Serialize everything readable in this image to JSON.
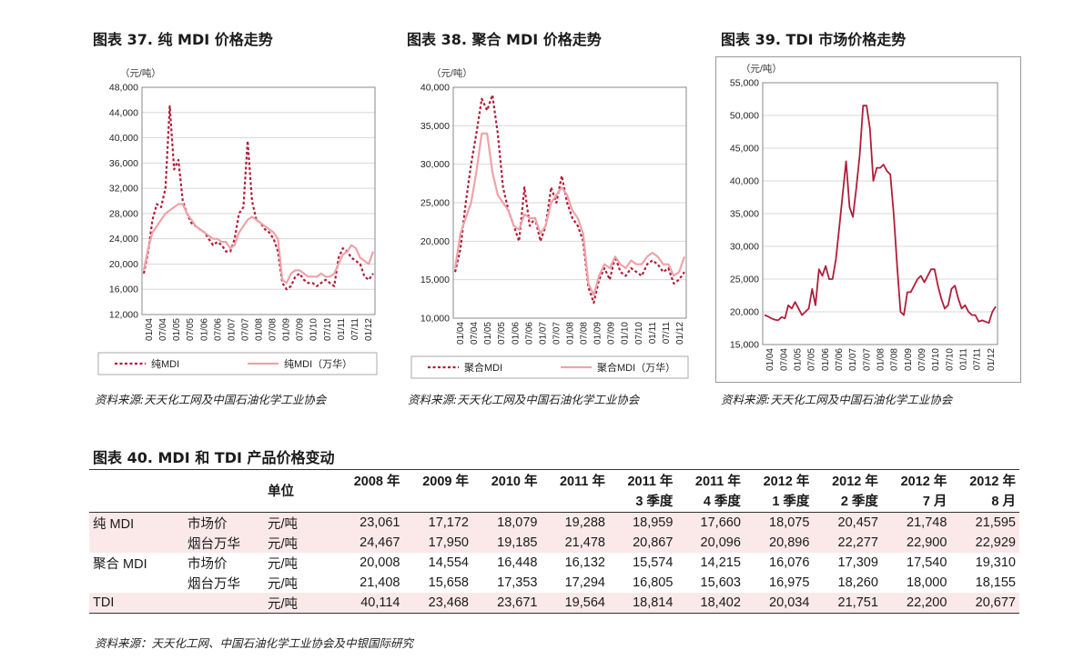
{
  "colors": {
    "series_dark": "#b01e3a",
    "series_light": "#eda3a9",
    "shade": "#fbe9ea"
  },
  "charts": [
    {
      "title": "图表 37. 纯 MDI 价格走势",
      "unit": "（元/吨）",
      "source": "资料来源:天天化工网及中国石油化学工业协会",
      "legend": [
        "纯MDI",
        "纯MDI（万华）"
      ]
    },
    {
      "title": "图表 38. 聚合 MDI 价格走势",
      "unit": "（元/吨）",
      "source": "资料来源:天天化工网及中国石油化学工业协会",
      "legend": [
        "聚合MDI",
        "聚合MDI（万华）"
      ]
    },
    {
      "title": "图表 39. TDI 市场价格走势",
      "unit": "（元/吨）",
      "source": "资料来源:天天化工网及中国石油化学工业协会",
      "legend": []
    }
  ],
  "chart_data": [
    {
      "type": "line",
      "title": "图表 37. 纯 MDI 价格走势",
      "ylabel": "（元/吨）",
      "ylim": [
        12000,
        48000
      ],
      "yticks": [
        "12,000",
        "16,000",
        "20,000",
        "24,000",
        "28,000",
        "32,000",
        "36,000",
        "40,000",
        "44,000",
        "48,000"
      ],
      "x_ticks": [
        "01/04",
        "07/04",
        "01/05",
        "07/05",
        "01/06",
        "07/06",
        "01/07",
        "07/07",
        "01/08",
        "07/08",
        "01/09",
        "07/09",
        "01/10",
        "07/10",
        "01/11",
        "07/11",
        "01/12"
      ],
      "legend_position": "bottom",
      "grid": true,
      "series": [
        {
          "name": "纯MDI",
          "style": "dotted",
          "color": "#b01e3a",
          "values": [
            18500,
            22000,
            27000,
            29500,
            29000,
            32000,
            45000,
            35000,
            36500,
            30000,
            28000,
            26500,
            26000,
            25500,
            25000,
            24000,
            23000,
            23500,
            23000,
            22000,
            22000,
            24000,
            28000,
            29000,
            39500,
            30000,
            27000,
            26500,
            25500,
            25000,
            24000,
            22000,
            17000,
            16000,
            16500,
            18000,
            18500,
            17500,
            17000,
            17000,
            16500,
            17000,
            17500,
            17000,
            16500,
            21000,
            22500,
            22000,
            21000,
            20500,
            20000,
            18000,
            17500,
            18500
          ]
        },
        {
          "name": "纯MDI（万华）",
          "style": "solid",
          "color": "#eda3a9",
          "values": [
            19000,
            22500,
            25000,
            26000,
            27000,
            28000,
            28500,
            29000,
            29500,
            29500,
            28000,
            27000,
            26000,
            25500,
            25000,
            24500,
            24000,
            24000,
            23500,
            23500,
            22500,
            23000,
            25000,
            26000,
            27000,
            27500,
            27000,
            26500,
            26000,
            25500,
            25000,
            24000,
            17500,
            17000,
            18500,
            19000,
            19000,
            18500,
            18000,
            18000,
            18000,
            18500,
            18000,
            18000,
            18500,
            20000,
            21500,
            22000,
            23000,
            22500,
            21000,
            20500,
            20000,
            22000
          ]
        }
      ]
    },
    {
      "type": "line",
      "title": "图表 38. 聚合 MDI 价格走势",
      "ylabel": "（元/吨）",
      "ylim": [
        10000,
        40000
      ],
      "yticks": [
        "10,000",
        "15,000",
        "20,000",
        "25,000",
        "30,000",
        "35,000",
        "40,000"
      ],
      "x_ticks": [
        "01/04",
        "07/04",
        "01/05",
        "07/05",
        "01/06",
        "07/06",
        "01/07",
        "07/07",
        "01/08",
        "07/08",
        "01/09",
        "07/09",
        "01/10",
        "07/10",
        "01/11",
        "07/11",
        "01/12"
      ],
      "legend_position": "bottom",
      "grid": true,
      "series": [
        {
          "name": "聚合MDI",
          "style": "dotted",
          "color": "#b01e3a",
          "values": [
            16000,
            19000,
            25000,
            30000,
            34000,
            38500,
            37000,
            39000,
            34000,
            27000,
            24000,
            22000,
            20000,
            27000,
            22000,
            23000,
            20000,
            22000,
            27000,
            25000,
            28500,
            25000,
            23000,
            22000,
            20000,
            14000,
            12000,
            15000,
            16500,
            15000,
            18000,
            16000,
            15500,
            16500,
            16000,
            15500,
            17000,
            17500,
            17000,
            16000,
            16500,
            14500,
            15000,
            16000
          ]
        },
        {
          "name": "聚合MDI（万华）",
          "style": "solid",
          "color": "#eda3a9",
          "values": [
            16500,
            21000,
            23000,
            25000,
            29000,
            34000,
            34000,
            29000,
            26000,
            25000,
            24000,
            22000,
            21500,
            23500,
            23000,
            23000,
            21000,
            22000,
            25000,
            26000,
            27000,
            26000,
            24000,
            23000,
            21000,
            14500,
            13000,
            15500,
            17000,
            16500,
            18000,
            17000,
            16500,
            17500,
            17000,
            17000,
            18000,
            18500,
            18000,
            17000,
            17000,
            15500,
            16000,
            18000
          ]
        }
      ]
    },
    {
      "type": "line",
      "title": "图表 39. TDI 市场价格走势",
      "ylabel": "（元/吨）",
      "ylim": [
        15000,
        55000
      ],
      "yticks": [
        "15,000",
        "20,000",
        "25,000",
        "30,000",
        "35,000",
        "40,000",
        "45,000",
        "50,000",
        "55,000"
      ],
      "x_ticks": [
        "01/04",
        "07/04",
        "01/05",
        "07/05",
        "01/06",
        "07/06",
        "01/07",
        "07/07",
        "01/08",
        "07/08",
        "01/09",
        "07/09",
        "01/10",
        "07/10",
        "01/11",
        "07/11",
        "01/12"
      ],
      "legend_position": "none",
      "grid": true,
      "series": [
        {
          "name": "",
          "style": "solid",
          "color": "#b01e3a",
          "values": [
            19500,
            19300,
            19000,
            18800,
            18700,
            19200,
            19000,
            21000,
            20500,
            21500,
            20500,
            19500,
            20000,
            20500,
            23500,
            21000,
            26500,
            25500,
            27000,
            25000,
            25000,
            28000,
            33000,
            38000,
            43000,
            36000,
            34500,
            39000,
            44000,
            51500,
            51500,
            48000,
            40000,
            42000,
            42000,
            42500,
            41500,
            41000,
            35000,
            27000,
            20000,
            19500,
            23000,
            23000,
            24000,
            25000,
            25500,
            24500,
            25500,
            26500,
            26500,
            24000,
            22000,
            20500,
            21000,
            23500,
            24000,
            22000,
            20500,
            21000,
            20000,
            19500,
            19500,
            18500,
            18700,
            18500,
            18300,
            20000,
            20800
          ]
        }
      ]
    }
  ],
  "table": {
    "title": "图表 40. MDI 和 TDI 产品价格变动",
    "unit_header": "单位",
    "col_line1": [
      "2008 年",
      "2009 年",
      "2010 年",
      "2011 年",
      "2011 年",
      "2011 年",
      "2012 年",
      "2012 年",
      "2012 年",
      "2012 年"
    ],
    "col_line2": [
      "",
      "",
      "",
      "",
      "3 季度",
      "4 季度",
      "1 季度",
      "2 季度",
      "7 月",
      "8 月"
    ],
    "rows": [
      {
        "product": "纯 MDI",
        "sub": "市场价",
        "unit": "元/吨",
        "values": [
          "23,061",
          "17,172",
          "18,079",
          "19,288",
          "18,959",
          "17,660",
          "18,075",
          "20,457",
          "21,748",
          "21,595"
        ],
        "shaded": true
      },
      {
        "product": "",
        "sub": "烟台万华",
        "unit": "元/吨",
        "values": [
          "24,467",
          "17,950",
          "19,185",
          "21,478",
          "20,867",
          "20,096",
          "20,896",
          "22,277",
          "22,900",
          "22,929"
        ],
        "shaded": true
      },
      {
        "product": "聚合 MDI",
        "sub": "市场价",
        "unit": "元/吨",
        "values": [
          "20,008",
          "14,554",
          "16,448",
          "16,132",
          "15,574",
          "14,215",
          "16,076",
          "17,309",
          "17,540",
          "19,310"
        ],
        "shaded": false
      },
      {
        "product": "",
        "sub": "烟台万华",
        "unit": "元/吨",
        "values": [
          "21,408",
          "15,658",
          "17,353",
          "17,294",
          "16,805",
          "15,603",
          "16,975",
          "18,260",
          "18,000",
          "18,155"
        ],
        "shaded": false
      },
      {
        "product": "TDI",
        "sub": "",
        "unit": "元/吨",
        "values": [
          "40,114",
          "23,468",
          "23,671",
          "19,564",
          "18,814",
          "18,402",
          "20,034",
          "21,751",
          "22,200",
          "20,677"
        ],
        "shaded": true
      }
    ],
    "source": "资料来源：天天化工网、中国石油化学工业协会及中银国际研究"
  }
}
